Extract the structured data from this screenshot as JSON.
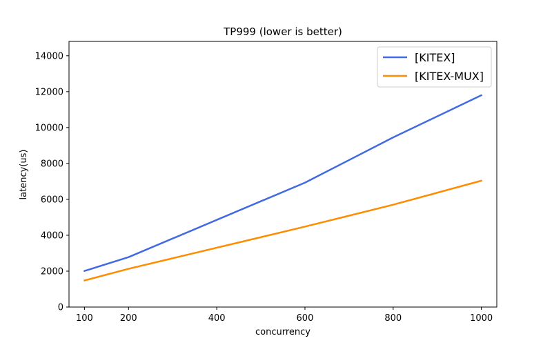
{
  "chart_data": {
    "type": "line",
    "title": "TP999 (lower is better)",
    "xlabel": "concurrency",
    "ylabel": "latency(us)",
    "x": [
      100,
      200,
      600,
      800,
      1000
    ],
    "xticks": [
      100,
      200,
      400,
      600,
      800,
      1000
    ],
    "xlim": [
      65,
      1035
    ],
    "yticks": [
      0,
      2000,
      4000,
      6000,
      8000,
      10000,
      12000,
      14000
    ],
    "ylim": [
      0,
      14800
    ],
    "legend_position": "top-right",
    "series": [
      {
        "name": "[KITEX]",
        "color": "#4169e1",
        "values": [
          2010,
          2780,
          6930,
          9450,
          11800
        ]
      },
      {
        "name": "[KITEX-MUX]",
        "color": "#ff8c00",
        "values": [
          1480,
          2130,
          4480,
          5700,
          7040
        ]
      }
    ]
  }
}
